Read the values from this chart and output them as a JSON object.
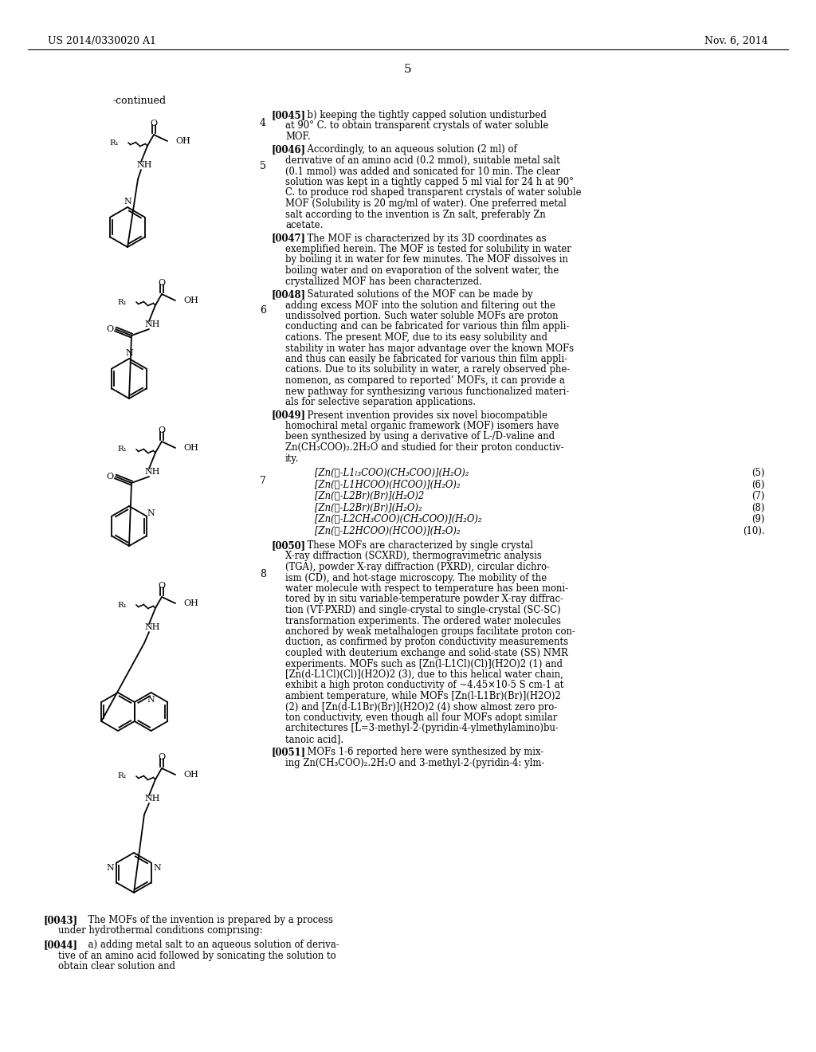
{
  "page_header_left": "US 2014/0330020 A1",
  "page_header_right": "Nov. 6, 2014",
  "page_number": "5",
  "continued_label": "-continued",
  "background_color": "#ffffff"
}
